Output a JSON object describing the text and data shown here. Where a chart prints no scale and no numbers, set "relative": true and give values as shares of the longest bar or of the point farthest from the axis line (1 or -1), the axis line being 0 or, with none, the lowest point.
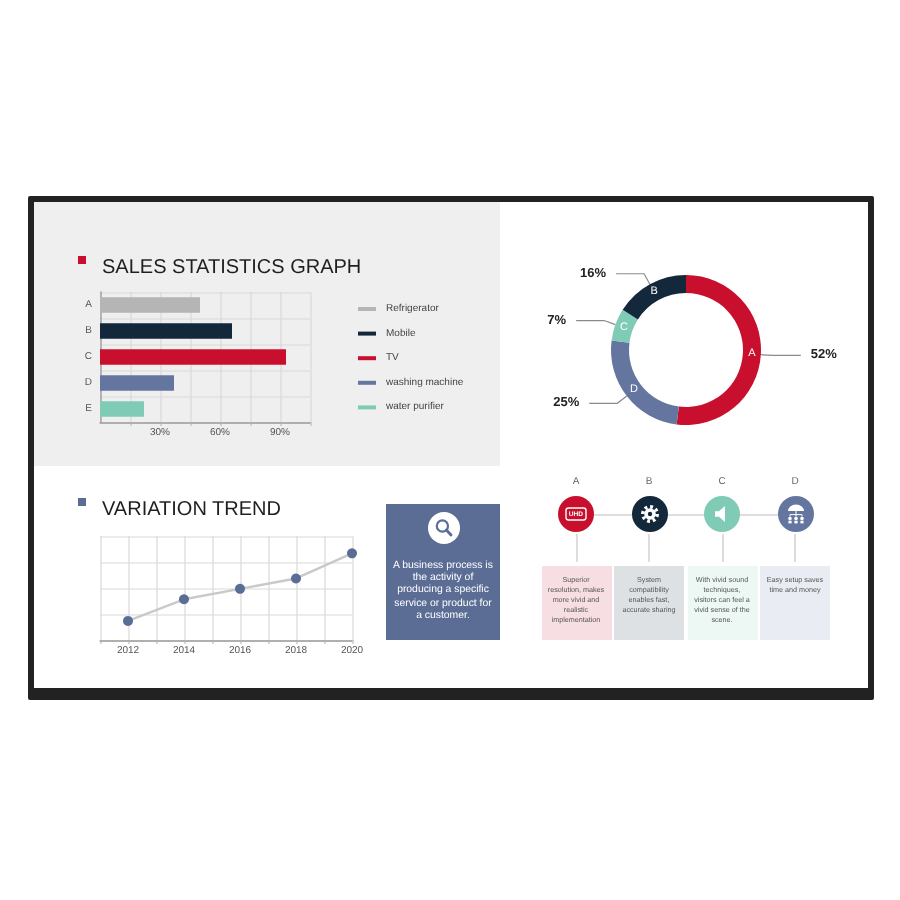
{
  "chart_data": [
    {
      "type": "bar",
      "title": "SALES STATISTICS GRAPH",
      "orientation": "horizontal",
      "categories": [
        "A",
        "B",
        "C",
        "D",
        "E"
      ],
      "series": [
        {
          "name": "Refrigerator",
          "color": "#b5b5b5",
          "values": [
            50,
            null,
            null,
            null,
            null
          ]
        },
        {
          "name": "Mobile",
          "color": "#14283b",
          "values": [
            null,
            66,
            null,
            null,
            null
          ]
        },
        {
          "name": "TV",
          "color": "#c8102e",
          "values": [
            null,
            null,
            93,
            null,
            null
          ]
        },
        {
          "name": "washing machine",
          "color": "#6476a0",
          "values": [
            null,
            null,
            null,
            37,
            null
          ]
        },
        {
          "name": "water purifier",
          "color": "#80cbb6",
          "values": [
            null,
            null,
            null,
            null,
            22
          ]
        }
      ],
      "xlim": [
        0,
        105
      ],
      "xticks": [
        {
          "value": 15,
          "label": null
        },
        {
          "value": 30,
          "label": "30%"
        },
        {
          "value": 45,
          "label": null
        },
        {
          "value": 60,
          "label": "60%"
        },
        {
          "value": 75,
          "label": null
        },
        {
          "value": 90,
          "label": "90%"
        },
        {
          "value": 105,
          "label": null
        }
      ],
      "grid": true,
      "legend": "right"
    },
    {
      "type": "donut",
      "categories": [
        "A",
        "D",
        "C",
        "B"
      ],
      "values": [
        52,
        25,
        7,
        16
      ],
      "colors": [
        "#c8102e",
        "#6476a0",
        "#80cbb6",
        "#14283b"
      ],
      "value_labels": [
        "52%",
        "25%",
        "7%",
        "16%"
      ]
    },
    {
      "type": "line",
      "title": "VARIATION TREND",
      "relative": true,
      "x": [
        2012,
        2014,
        2016,
        2018,
        2020
      ],
      "series": [
        {
          "color": "#c9c9c9",
          "values": [
            0.22,
            0.47,
            0.59,
            0.71,
            1
          ]
        }
      ],
      "colors": [
        "#5b6d95",
        "#5b6d95",
        "#5b6d95",
        "#5b6d95",
        "#5b6d95"
      ],
      "xlim": [
        2011,
        2020
      ],
      "xticks": [
        {
          "value": 2011,
          "label": null
        },
        2012,
        {
          "value": 2013,
          "label": null
        },
        2014,
        {
          "value": 2015,
          "label": null
        },
        2016,
        {
          "value": 2017,
          "label": null
        },
        2018,
        {
          "value": 2019,
          "label": null
        },
        2020
      ],
      "grid": true,
      "marker": "circle"
    },
    {
      "type": "other",
      "color": "#5b6d95",
      "annotations": [
        "A business process is the activity of producing a specific service or product for a customer."
      ]
    },
    {
      "type": "other",
      "categories": [
        "A",
        "B",
        "C",
        "D"
      ],
      "colors": [
        "#c8102e",
        "#14283b",
        "#80cbb6",
        "#6476a0"
      ],
      "annotations": [
        "Superior resolution, makes more vivid and realistic implementation",
        "System compatibility enables fast, accurate sharing",
        "With vivid sound techniques, visitors can feel a vivid sense of the scene.",
        "Easy setup saves time and money",
        "UHD"
      ]
    }
  ]
}
